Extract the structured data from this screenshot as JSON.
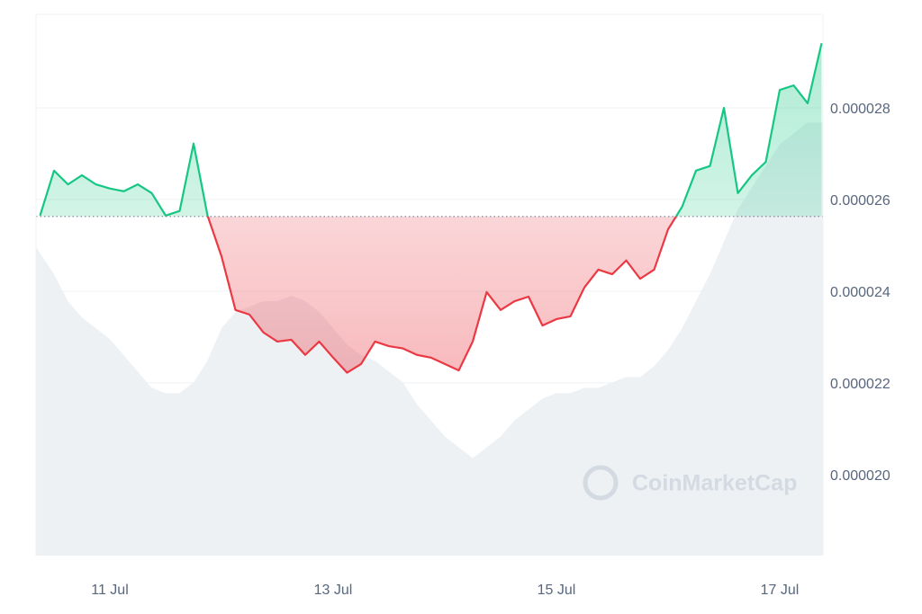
{
  "chart_data": {
    "type": "line",
    "watermark": "CoinMarketCap",
    "categories": [
      null,
      null,
      null,
      null,
      null,
      "11 Jul",
      null,
      null,
      null,
      null,
      null,
      null,
      null,
      null,
      null,
      null,
      null,
      null,
      null,
      null,
      null,
      "13 Jul",
      null,
      null,
      null,
      null,
      null,
      null,
      null,
      null,
      null,
      null,
      null,
      null,
      null,
      null,
      null,
      "15 Jul",
      null,
      null,
      null,
      null,
      null,
      null,
      null,
      null,
      null,
      null,
      null,
      null,
      null,
      null,
      null,
      "17 Jul",
      null,
      null,
      null
    ],
    "values": [
      2.565e-05,
      2.663e-05,
      2.633e-05,
      2.653e-05,
      2.633e-05,
      2.624e-05,
      2.618e-05,
      2.633e-05,
      2.614e-05,
      2.565e-05,
      2.575e-05,
      2.722e-05,
      2.565e-05,
      2.476e-05,
      2.359e-05,
      2.349e-05,
      2.31e-05,
      2.29e-05,
      2.294e-05,
      2.261e-05,
      2.29e-05,
      2.255e-05,
      2.222e-05,
      2.241e-05,
      2.29e-05,
      2.28e-05,
      2.275e-05,
      2.261e-05,
      2.255e-05,
      2.241e-05,
      2.227e-05,
      2.29e-05,
      2.398e-05,
      2.359e-05,
      2.378e-05,
      2.388e-05,
      2.325e-05,
      2.339e-05,
      2.345e-05,
      2.408e-05,
      2.447e-05,
      2.437e-05,
      2.467e-05,
      2.427e-05,
      2.447e-05,
      2.535e-05,
      2.584e-05,
      2.663e-05,
      2.673e-05,
      2.8e-05,
      2.614e-05,
      2.653e-05,
      2.682e-05,
      2.839e-05,
      2.849e-05,
      2.81e-05,
      2.941e-05
    ],
    "baseline": 2.563e-05,
    "up_color": "#16c784",
    "down_color": "#ea3943",
    "volume": {
      "color": "#eef1f4",
      "values": [
        57,
        52,
        47,
        44,
        42,
        40,
        37,
        34,
        31,
        30,
        30,
        32,
        36,
        42,
        45,
        46,
        47,
        47,
        48,
        47,
        45,
        42,
        39,
        37,
        36,
        34,
        32,
        28,
        25,
        22,
        20,
        18,
        20,
        22,
        25,
        27,
        29,
        30,
        30,
        31,
        31,
        32,
        33,
        33,
        35,
        38,
        42,
        47,
        52,
        58,
        64,
        68,
        72,
        76,
        78,
        80,
        80
      ]
    },
    "vlim": [
      0,
      100
    ],
    "ylim": [
      1.823e-05,
      3.004e-05
    ],
    "yticks": [
      {
        "value": 2e-05,
        "label": "0.000020"
      },
      2.2e-05,
      2.4e-05,
      2.6e-05,
      2.8e-05
    ],
    "grid": true
  }
}
